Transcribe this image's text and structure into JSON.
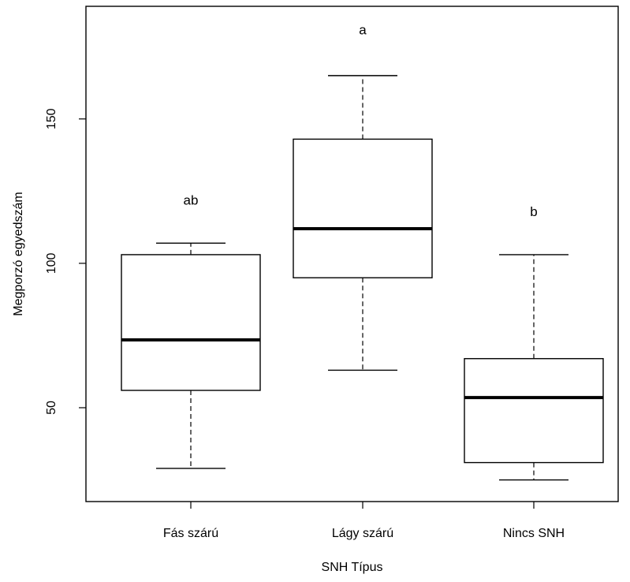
{
  "chart_data": {
    "type": "boxplot",
    "title": "",
    "xlabel": "SNH Típus",
    "ylabel": "Megporzó egyedszám",
    "categories": [
      "Fás szárú",
      "Lágy szárú",
      "Nincs SNH"
    ],
    "boxes": [
      {
        "category": "Fás szárú",
        "whisker_low": 29,
        "q1": 56,
        "median": 73.5,
        "q3": 103,
        "whisker_high": 107,
        "letter": "ab",
        "letter_y": 122
      },
      {
        "category": "Lágy szárú",
        "whisker_low": 63,
        "q1": 95,
        "median": 112,
        "q3": 143,
        "whisker_high": 165,
        "letter": "a",
        "letter_y": 181
      },
      {
        "category": "Nincs SNH",
        "whisker_low": 25,
        "q1": 31,
        "median": 53.5,
        "q3": 67,
        "whisker_high": 103,
        "letter": "b",
        "letter_y": 118
      }
    ],
    "y_ticks": [
      50,
      100,
      150
    ],
    "y_tick_labels": [
      "50",
      "100",
      "150"
    ],
    "ylim": [
      17.5,
      189
    ],
    "grid": false,
    "colors": {
      "box_fill": "#ffffff",
      "stroke": "#000000",
      "background": "#ffffff"
    }
  }
}
